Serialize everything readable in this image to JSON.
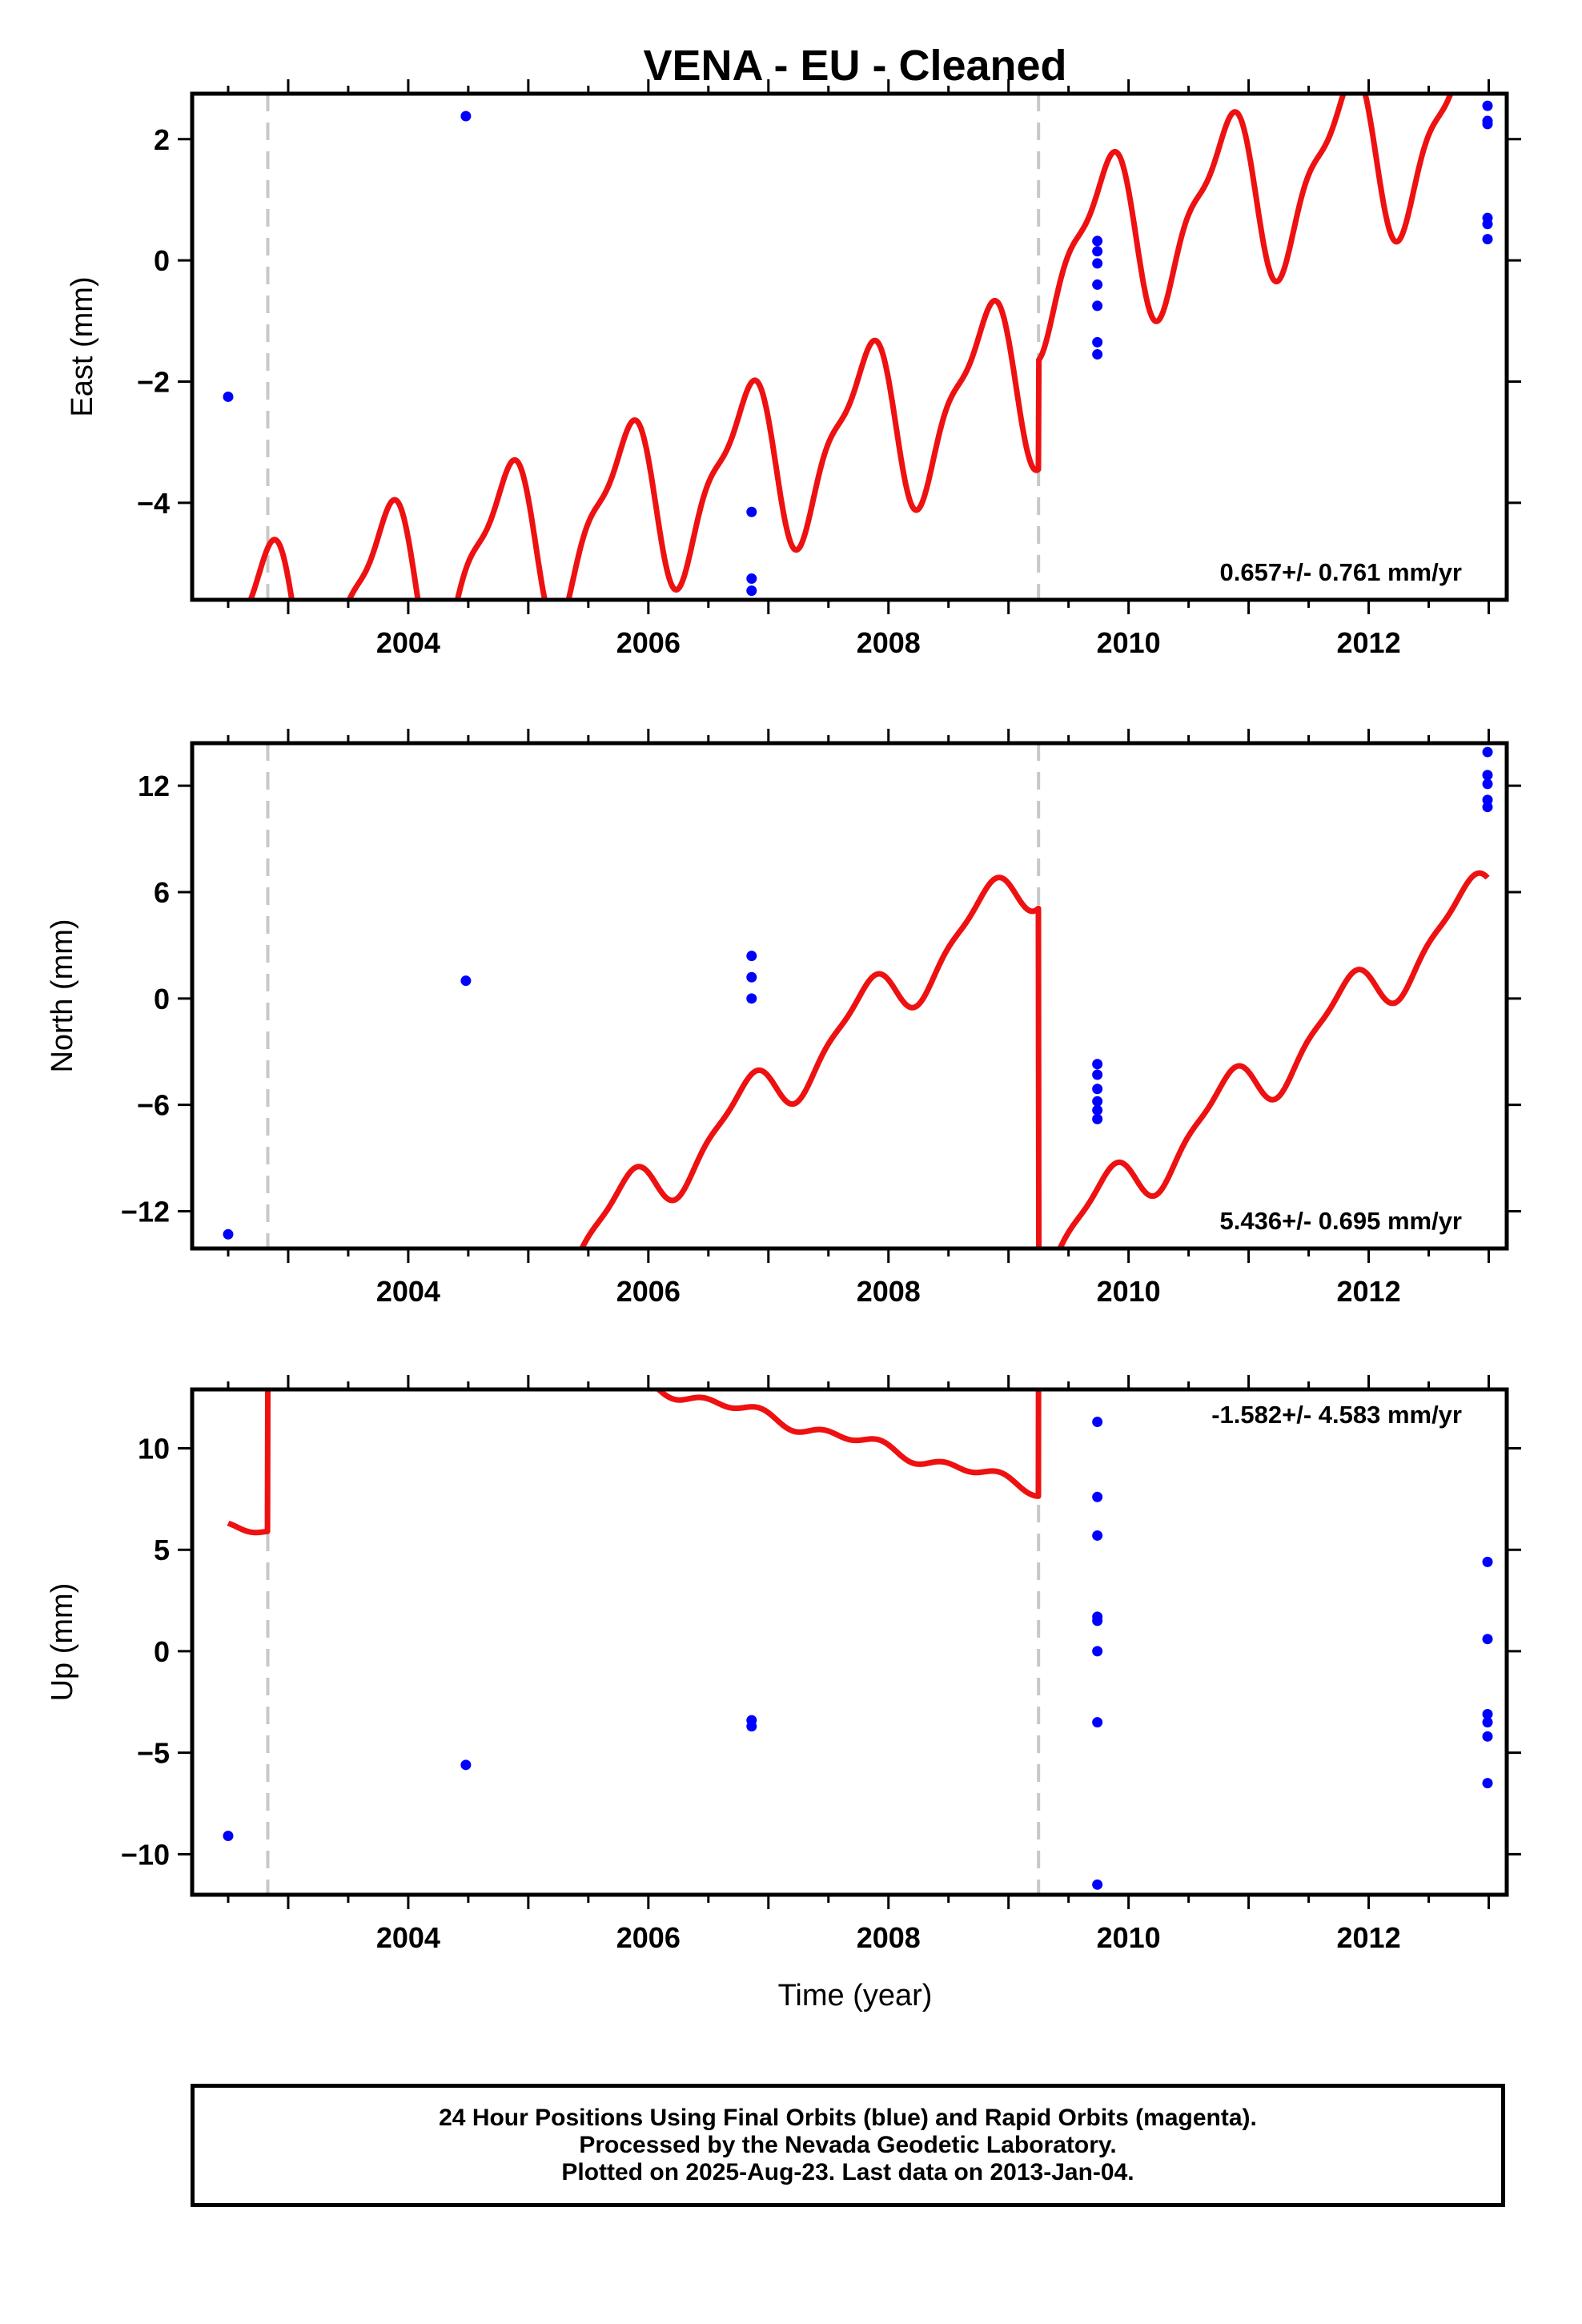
{
  "title": "VENA  - EU - Cleaned",
  "x_axis_label": "Time (year)",
  "footer": {
    "line1": "24 Hour Positions Using Final Orbits (blue) and Rapid Orbits (magenta).",
    "line2": "Processed by the Nevada Geodetic Laboratory.",
    "line3": "Plotted on 2025-Aug-23. Last data on 2013-Jan-04."
  },
  "colors": {
    "model": "#ee1111",
    "final_orbits": "#0000ff",
    "breaks": "#c8c8c8",
    "frame": "#000000"
  },
  "chart_data": [
    {
      "type": "scatter",
      "name": "east",
      "ylabel": "East (mm)",
      "xlim": [
        2002.2,
        2013.15
      ],
      "ylim": [
        -5.6,
        2.75
      ],
      "x_ticks": [
        2004,
        2006,
        2008,
        2010,
        2012
      ],
      "y_ticks": [
        -4,
        -2,
        0,
        2
      ],
      "y_tick_labels": [
        "−4",
        "−2",
        "0",
        "2"
      ],
      "rate_label": "0.657+/- 0.761 mm/yr",
      "rate_position": "bottom-right",
      "breaks": [
        2002.83,
        2009.25
      ],
      "model": {
        "offsets": [
          0,
          1.8
        ],
        "base": [
          -3.0,
          0.657
        ],
        "annual_amp": 1.3,
        "annual_phase": 0.545,
        "semi_amp": 0.45,
        "semi_phase": 0.32
      },
      "points": [
        [
          2002.5,
          -2.25
        ],
        [
          2004.48,
          2.38
        ],
        [
          2006.86,
          -4.15
        ],
        [
          2006.86,
          -5.25
        ],
        [
          2006.86,
          -5.45
        ],
        [
          2009.74,
          0.32
        ],
        [
          2009.74,
          0.15
        ],
        [
          2009.74,
          -0.05
        ],
        [
          2009.74,
          -0.4
        ],
        [
          2009.74,
          -0.75
        ],
        [
          2009.74,
          -1.35
        ],
        [
          2009.74,
          -1.55
        ],
        [
          2012.99,
          2.55
        ],
        [
          2012.99,
          2.3
        ],
        [
          2012.99,
          2.25
        ],
        [
          2012.99,
          0.7
        ],
        [
          2012.99,
          0.6
        ],
        [
          2012.99,
          0.35
        ]
      ]
    },
    {
      "type": "scatter",
      "name": "north",
      "ylabel": "North (mm)",
      "xlim": [
        2002.2,
        2013.15
      ],
      "ylim": [
        -14.1,
        14.4
      ],
      "x_ticks": [
        2004,
        2006,
        2008,
        2010,
        2012
      ],
      "y_ticks": [
        -12,
        -6,
        0,
        6,
        12
      ],
      "y_tick_labels": [
        "−12",
        "−6",
        "0",
        "6",
        "12"
      ],
      "rate_label": "5.436+/- 0.695 mm/yr",
      "rate_position": "bottom-right",
      "breaks": [
        2002.83,
        2009.25
      ],
      "model": {
        "offsets": [
          0,
          -21.5
        ],
        "base": [
          -2.5,
          5.436
        ],
        "annual_amp": 1.6,
        "annual_phase": 0.545,
        "semi_amp": 0.5,
        "semi_phase": 0.32
      },
      "points": [
        [
          2002.5,
          -13.3
        ],
        [
          2004.48,
          1.0
        ],
        [
          2006.86,
          2.4
        ],
        [
          2006.86,
          1.2
        ],
        [
          2006.86,
          0.0
        ],
        [
          2009.74,
          -3.7
        ],
        [
          2009.74,
          -4.3
        ],
        [
          2009.74,
          -5.1
        ],
        [
          2009.74,
          -5.8
        ],
        [
          2009.74,
          -6.3
        ],
        [
          2009.74,
          -6.8
        ],
        [
          2012.99,
          13.9
        ],
        [
          2012.99,
          12.6
        ],
        [
          2012.99,
          12.1
        ],
        [
          2012.99,
          11.2
        ],
        [
          2012.99,
          10.8
        ]
      ]
    },
    {
      "type": "scatter",
      "name": "up",
      "ylabel": "Up (mm)",
      "xlim": [
        2002.2,
        2013.15
      ],
      "ylim": [
        -12.0,
        12.9
      ],
      "x_ticks": [
        2004,
        2006,
        2008,
        2010,
        2012
      ],
      "y_ticks": [
        -10,
        -5,
        0,
        5,
        10
      ],
      "y_tick_labels": [
        "−10",
        "−5",
        "0",
        "5",
        "10"
      ],
      "rate_label": "-1.582+/- 4.583 mm/yr",
      "rate_position": "top-right",
      "breaks": [
        2002.83,
        2009.25
      ],
      "model": {
        "offsets": [
          12.45,
          21.6
        ],
        "base": [
          -1.7,
          -1.582
        ],
        "annual_amp": 0.2,
        "annual_phase": 0.545,
        "semi_amp": 0.2,
        "semi_phase": 0.32
      },
      "points": [
        [
          2002.5,
          -9.1
        ],
        [
          2004.48,
          -5.6
        ],
        [
          2006.86,
          -3.4
        ],
        [
          2006.86,
          -3.7
        ],
        [
          2009.74,
          11.3
        ],
        [
          2009.74,
          7.6
        ],
        [
          2009.74,
          5.7
        ],
        [
          2009.74,
          1.7
        ],
        [
          2009.74,
          1.5
        ],
        [
          2009.74,
          0.0
        ],
        [
          2009.74,
          -3.5
        ],
        [
          2009.74,
          -11.5
        ],
        [
          2012.99,
          4.4
        ],
        [
          2012.99,
          0.6
        ],
        [
          2012.99,
          -3.1
        ],
        [
          2012.99,
          -3.5
        ],
        [
          2012.99,
          -4.2
        ],
        [
          2012.99,
          -6.5
        ]
      ]
    }
  ]
}
